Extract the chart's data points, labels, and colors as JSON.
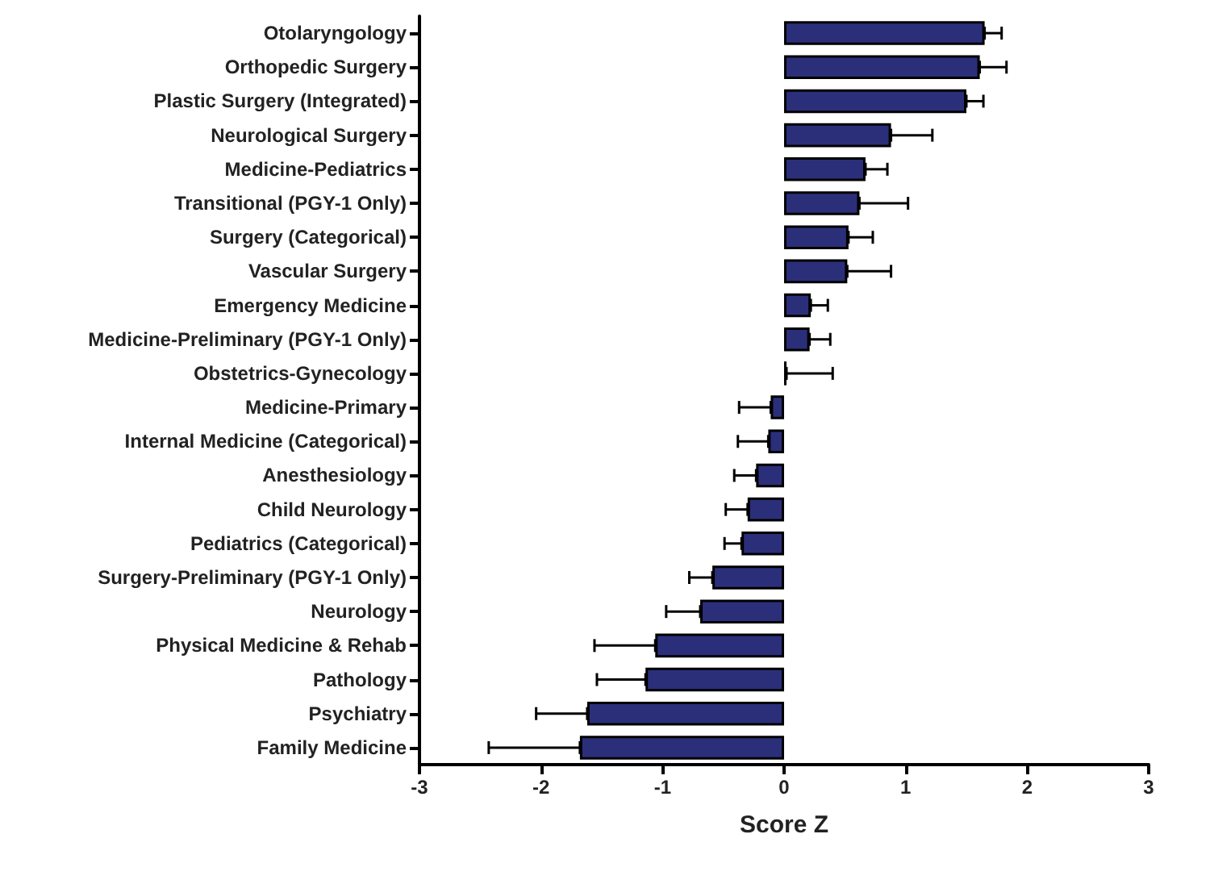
{
  "chart_data": {
    "type": "bar",
    "orientation": "horizontal",
    "xlabel": "Score Z",
    "categories": [
      "Otolaryngology",
      "Orthopedic Surgery",
      "Plastic Surgery (Integrated)",
      "Neurological Surgery",
      "Medicine-Pediatrics",
      "Transitional (PGY-1 Only)",
      "Surgery (Categorical)",
      "Vascular Surgery",
      "Emergency Medicine",
      "Medicine-Preliminary (PGY-1 Only)",
      "Obstetrics-Gynecology",
      "Medicine-Primary",
      "Internal Medicine (Categorical)",
      "Anesthesiology",
      "Child Neurology",
      "Pediatrics (Categorical)",
      "Surgery-Preliminary (PGY-1 Only)",
      "Neurology",
      "Physical Medicine & Rehab",
      "Pathology",
      "Psychiatry",
      "Family Medicine"
    ],
    "values": [
      1.65,
      1.61,
      1.5,
      0.88,
      0.67,
      0.62,
      0.53,
      0.52,
      0.22,
      0.21,
      0.02,
      -0.11,
      -0.13,
      -0.23,
      -0.3,
      -0.35,
      -0.59,
      -0.69,
      -1.06,
      -1.14,
      -1.62,
      -1.68
    ],
    "errors": [
      [
        1.65,
        1.79
      ],
      [
        1.61,
        1.83
      ],
      [
        1.5,
        1.64
      ],
      [
        0.88,
        1.22
      ],
      [
        0.67,
        0.85
      ],
      [
        0.62,
        1.02
      ],
      [
        0.53,
        0.73
      ],
      [
        0.52,
        0.88
      ],
      [
        0.22,
        0.36
      ],
      [
        0.21,
        0.38
      ],
      [
        0.02,
        0.4
      ],
      [
        -0.37,
        -0.11
      ],
      [
        -0.38,
        -0.13
      ],
      [
        -0.41,
        -0.23
      ],
      [
        -0.48,
        -0.3
      ],
      [
        -0.49,
        -0.35
      ],
      [
        -0.78,
        -0.59
      ],
      [
        -0.97,
        -0.69
      ],
      [
        -1.56,
        -1.06
      ],
      [
        -1.54,
        -1.14
      ],
      [
        -2.04,
        -1.62
      ],
      [
        -2.43,
        -1.68
      ]
    ],
    "color": "#2b2f7a",
    "xlim": [
      -3,
      3
    ],
    "xticks": [
      -3,
      -2,
      -1,
      0,
      1,
      2,
      3
    ],
    "grid": false
  }
}
